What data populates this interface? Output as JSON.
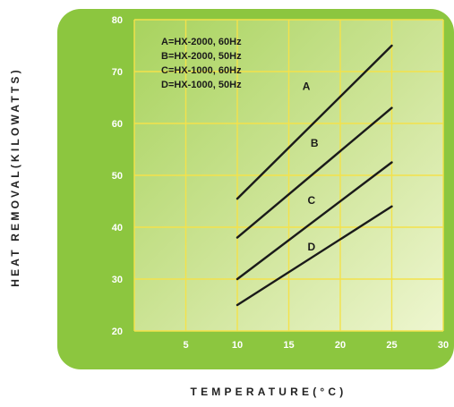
{
  "chart_data": {
    "type": "line",
    "title": "",
    "xlabel": "TEMPERATURE(°C)",
    "ylabel": "HEAT REMOVAL(KILOWATTS)",
    "xlim": [
      0,
      30
    ],
    "ylim": [
      20,
      80
    ],
    "xticks": [
      "5",
      "10",
      "15",
      "20",
      "25",
      "30"
    ],
    "yticks": [
      "20",
      "30",
      "40",
      "50",
      "60",
      "70",
      "80"
    ],
    "grid": true,
    "legend_position": "top-left",
    "legend": [
      "A=HX-2000, 60Hz",
      "B=HX-2000, 50Hz",
      "C=HX-1000, 60Hz",
      "D=HX-1000, 50Hz"
    ],
    "series": [
      {
        "name": "A",
        "x": [
          10,
          25
        ],
        "y": [
          45.5,
          75
        ]
      },
      {
        "name": "B",
        "x": [
          10,
          25
        ],
        "y": [
          38,
          63
        ]
      },
      {
        "name": "C",
        "x": [
          10,
          25
        ],
        "y": [
          30,
          52.5
        ]
      },
      {
        "name": "D",
        "x": [
          10,
          25
        ],
        "y": [
          25,
          44
        ]
      }
    ],
    "series_labels": [
      {
        "text": "A",
        "x": 16.7,
        "y": 66.5
      },
      {
        "text": "B",
        "x": 17.5,
        "y": 55.5
      },
      {
        "text": "C",
        "x": 17.2,
        "y": 44.5
      },
      {
        "text": "D",
        "x": 17.2,
        "y": 35.5
      }
    ],
    "colors": {
      "background": "#8cc63f",
      "plot_gradient_dark": "#a8d35e",
      "plot_gradient_light": "#eef6d0",
      "grid": "#f4e24a",
      "tick_text": "#ffffff",
      "lines": "#1a1a1a"
    }
  }
}
